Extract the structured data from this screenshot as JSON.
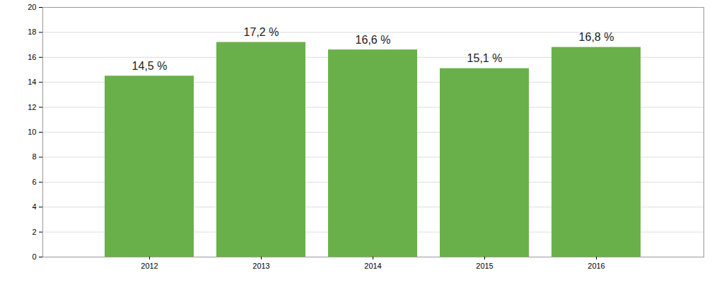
{
  "chart_data": {
    "type": "bar",
    "categories": [
      "2012",
      "2013",
      "2014",
      "2015",
      "2016"
    ],
    "values": [
      14.5,
      17.2,
      16.6,
      15.1,
      16.8
    ],
    "value_labels": [
      "14,5 %",
      "17,2 %",
      "16,6 %",
      "15,1 %",
      "16,8 %"
    ],
    "data_labels": true,
    "color": "#6ab04a",
    "ylim": [
      0,
      20
    ],
    "yticks": [
      0,
      2,
      4,
      6,
      8,
      10,
      12,
      14,
      16,
      18,
      20
    ],
    "grid": true
  }
}
